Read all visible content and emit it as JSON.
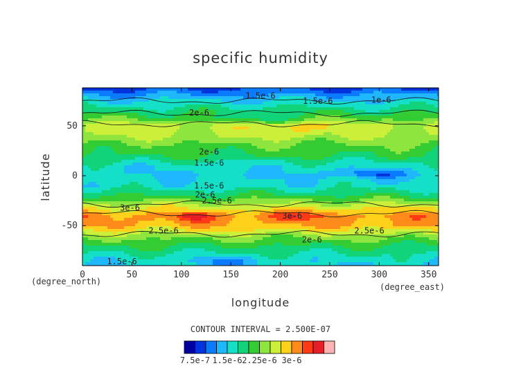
{
  "chart_data": {
    "type": "heatmap",
    "subtype": "filled-contour",
    "title": "specific humidity",
    "xlabel": "longitude",
    "ylabel": "latitude",
    "x_unit": "(degree_east)",
    "y_unit": "(degree_north)",
    "xlim": [
      0,
      360
    ],
    "ylim": [
      -90,
      88
    ],
    "xticks": [
      0,
      50,
      100,
      150,
      200,
      250,
      300,
      350
    ],
    "yticks": [
      -50,
      0,
      50
    ],
    "grid": false,
    "contour_interval_text": "CONTOUR INTERVAL = 2.500E-07",
    "levels": [
      7.5e-07,
      1e-06,
      1.25e-06,
      1.5e-06,
      1.75e-06,
      2e-06,
      2.25e-06,
      2.5e-06,
      2.75e-06,
      3e-06,
      3.25e-06,
      3.5e-06
    ],
    "colors": [
      "#0000a0",
      "#0033dd",
      "#0a7bff",
      "#1fb8ff",
      "#14e0c8",
      "#10d37a",
      "#33cc33",
      "#8ee53d",
      "#ccf03a",
      "#ffd11a",
      "#ff8c1a",
      "#ff3a14",
      "#e61e28",
      "#ffb4b4"
    ],
    "colorbar_labels": [
      "7.5e-7",
      "1.5e-6",
      "2.25e-6",
      "3e-6"
    ],
    "latitude_profile": {
      "lat": [
        -90,
        -80,
        -70,
        -60,
        -50,
        -40,
        -30,
        -20,
        -10,
        0,
        10,
        20,
        30,
        40,
        50,
        60,
        70,
        80,
        88
      ],
      "value": [
        1.5e-06,
        1.7e-06,
        2e-06,
        2.4e-06,
        3e-06,
        3.1e-06,
        2.6e-06,
        2e-06,
        1.6e-06,
        1.5e-06,
        1.6e-06,
        2e-06,
        2.2e-06,
        2.5e-06,
        2.6e-06,
        2.1e-06,
        1.7e-06,
        1.3e-06,
        9e-07
      ]
    },
    "contour_labels": [
      {
        "text": "1.5e-6",
        "lon": 180,
        "lat": 80
      },
      {
        "text": "1.5e-6",
        "lon": 238,
        "lat": 75
      },
      {
        "text": "1e-6",
        "lon": 302,
        "lat": 76
      },
      {
        "text": "2e-6",
        "lon": 118,
        "lat": 63
      },
      {
        "text": "2e-6",
        "lon": 128,
        "lat": 24
      },
      {
        "text": "1.5e-6",
        "lon": 128,
        "lat": 13
      },
      {
        "text": "1.5e-6",
        "lon": 128,
        "lat": -10
      },
      {
        "text": "2e-6",
        "lon": 124,
        "lat": -19
      },
      {
        "text": "2.5e-6",
        "lon": 136,
        "lat": -25
      },
      {
        "text": "3e-6",
        "lon": 48,
        "lat": -32
      },
      {
        "text": "3e-6",
        "lon": 212,
        "lat": -40
      },
      {
        "text": "2.5e-6",
        "lon": 82,
        "lat": -55
      },
      {
        "text": "2.5e-6",
        "lon": 290,
        "lat": -55
      },
      {
        "text": "2e-6",
        "lon": 232,
        "lat": -64
      },
      {
        "text": "1.5e-6",
        "lon": 40,
        "lat": -86
      }
    ]
  }
}
